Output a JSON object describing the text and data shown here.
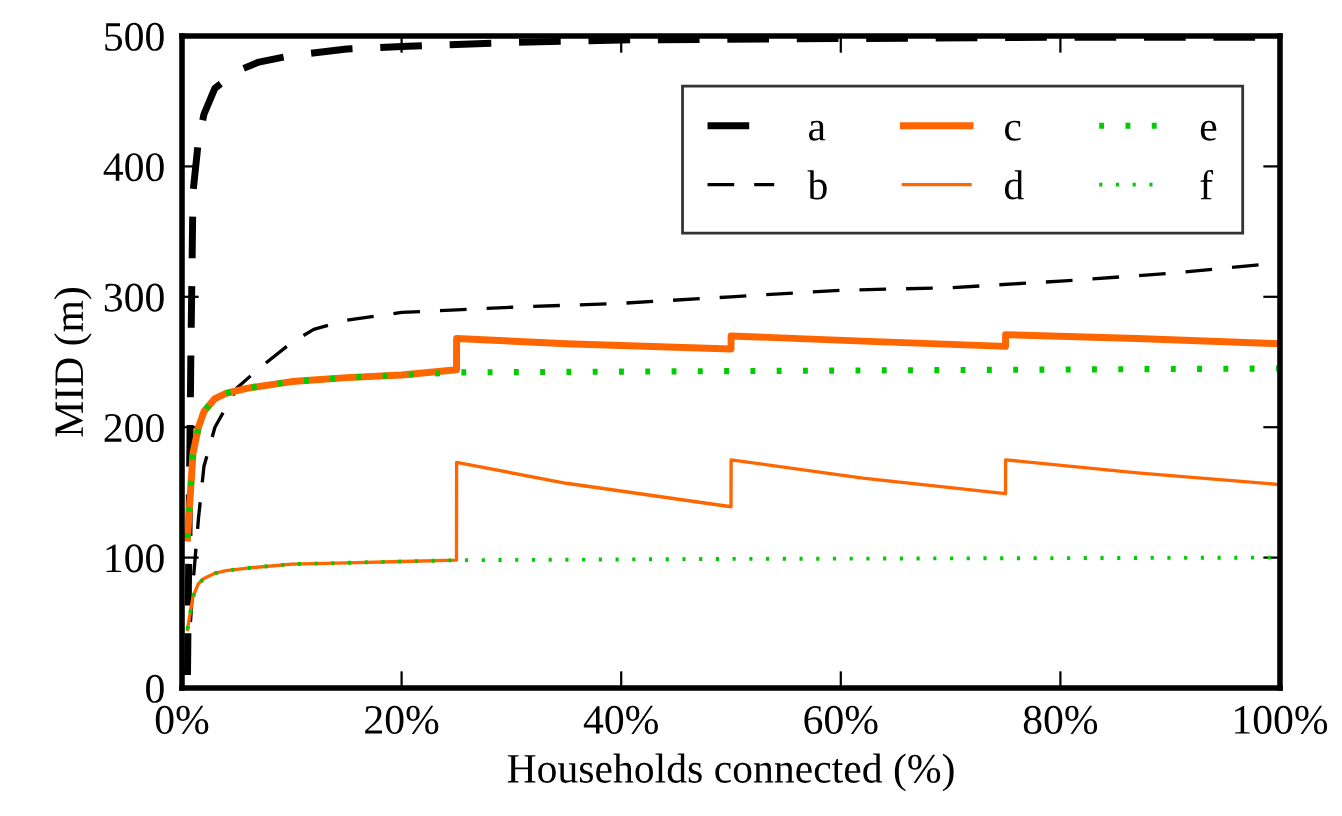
{
  "chart_data": {
    "type": "line",
    "xlabel": "Households connected (%)",
    "ylabel": "MID (m)",
    "xlim": [
      0,
      100
    ],
    "ylim": [
      0,
      500
    ],
    "xticks": [
      {
        "value": 0,
        "label": "0%"
      },
      {
        "value": 20,
        "label": "20%"
      },
      {
        "value": 40,
        "label": "40%"
      },
      {
        "value": 60,
        "label": "60%"
      },
      {
        "value": 80,
        "label": "80%"
      },
      {
        "value": 100,
        "label": "100%"
      }
    ],
    "yticks": [
      0,
      100,
      200,
      300,
      400,
      500
    ],
    "grid": false,
    "legend": "top right",
    "marker": "none",
    "series": [
      {
        "name": "a",
        "color": "#000000",
        "line_style": "dashed",
        "x": [
          0.5,
          0.8,
          1,
          1.5,
          2,
          3,
          5,
          7,
          10,
          15,
          20,
          30,
          40,
          60,
          80,
          100
        ],
        "values": [
          10,
          250,
          380,
          420,
          440,
          460,
          473,
          480,
          485,
          490,
          492,
          495,
          497,
          498,
          499,
          499
        ]
      },
      {
        "name": "b",
        "color": "#000000",
        "line_style": "dashed",
        "x": [
          0.5,
          1,
          1.5,
          2,
          3,
          4,
          5,
          7,
          10,
          12,
          15,
          20,
          25,
          30,
          40,
          50,
          60,
          70,
          80,
          90,
          100
        ],
        "values": [
          15,
          80,
          130,
          170,
          200,
          215,
          230,
          245,
          265,
          275,
          282,
          288,
          290,
          292,
          295,
          300,
          305,
          307,
          312,
          318,
          326
        ]
      },
      {
        "name": "c",
        "color": "#ff6600",
        "line_style": "solid",
        "x": [
          0.5,
          1,
          1.5,
          2,
          3,
          4,
          6,
          10,
          15,
          20,
          25,
          25.01,
          35,
          50,
          50.01,
          62,
          75,
          75.01,
          87,
          100
        ],
        "values": [
          115,
          180,
          200,
          212,
          222,
          226,
          230,
          235,
          238,
          240,
          244,
          268,
          264,
          260,
          270,
          266,
          262,
          271,
          268,
          264
        ]
      },
      {
        "name": "d",
        "color": "#ff6600",
        "line_style": "solid",
        "x": [
          0.5,
          1,
          1.5,
          2,
          3,
          4,
          6,
          10,
          15,
          20,
          25,
          25.01,
          35,
          50,
          50.01,
          62,
          75,
          75.01,
          87,
          100
        ],
        "values": [
          45,
          70,
          80,
          84,
          88,
          90,
          92,
          95,
          96,
          97,
          98,
          173,
          157,
          139,
          175,
          161,
          149,
          175,
          165,
          156
        ]
      },
      {
        "name": "e",
        "color": "#00cc00",
        "line_style": "dotted",
        "x": [
          0.5,
          1,
          1.5,
          2,
          3,
          4,
          6,
          10,
          15,
          20,
          25,
          50,
          75,
          100
        ],
        "values": [
          115,
          180,
          200,
          212,
          222,
          226,
          230,
          235,
          238,
          240,
          242,
          243,
          244,
          245
        ]
      },
      {
        "name": "f",
        "color": "#00cc00",
        "line_style": "dotted",
        "x": [
          0.5,
          1,
          1.5,
          2,
          3,
          4,
          6,
          10,
          15,
          20,
          25,
          50,
          75,
          100
        ],
        "values": [
          45,
          70,
          80,
          84,
          88,
          90,
          92,
          95,
          96,
          97,
          98,
          99,
          99.5,
          100
        ]
      }
    ]
  }
}
